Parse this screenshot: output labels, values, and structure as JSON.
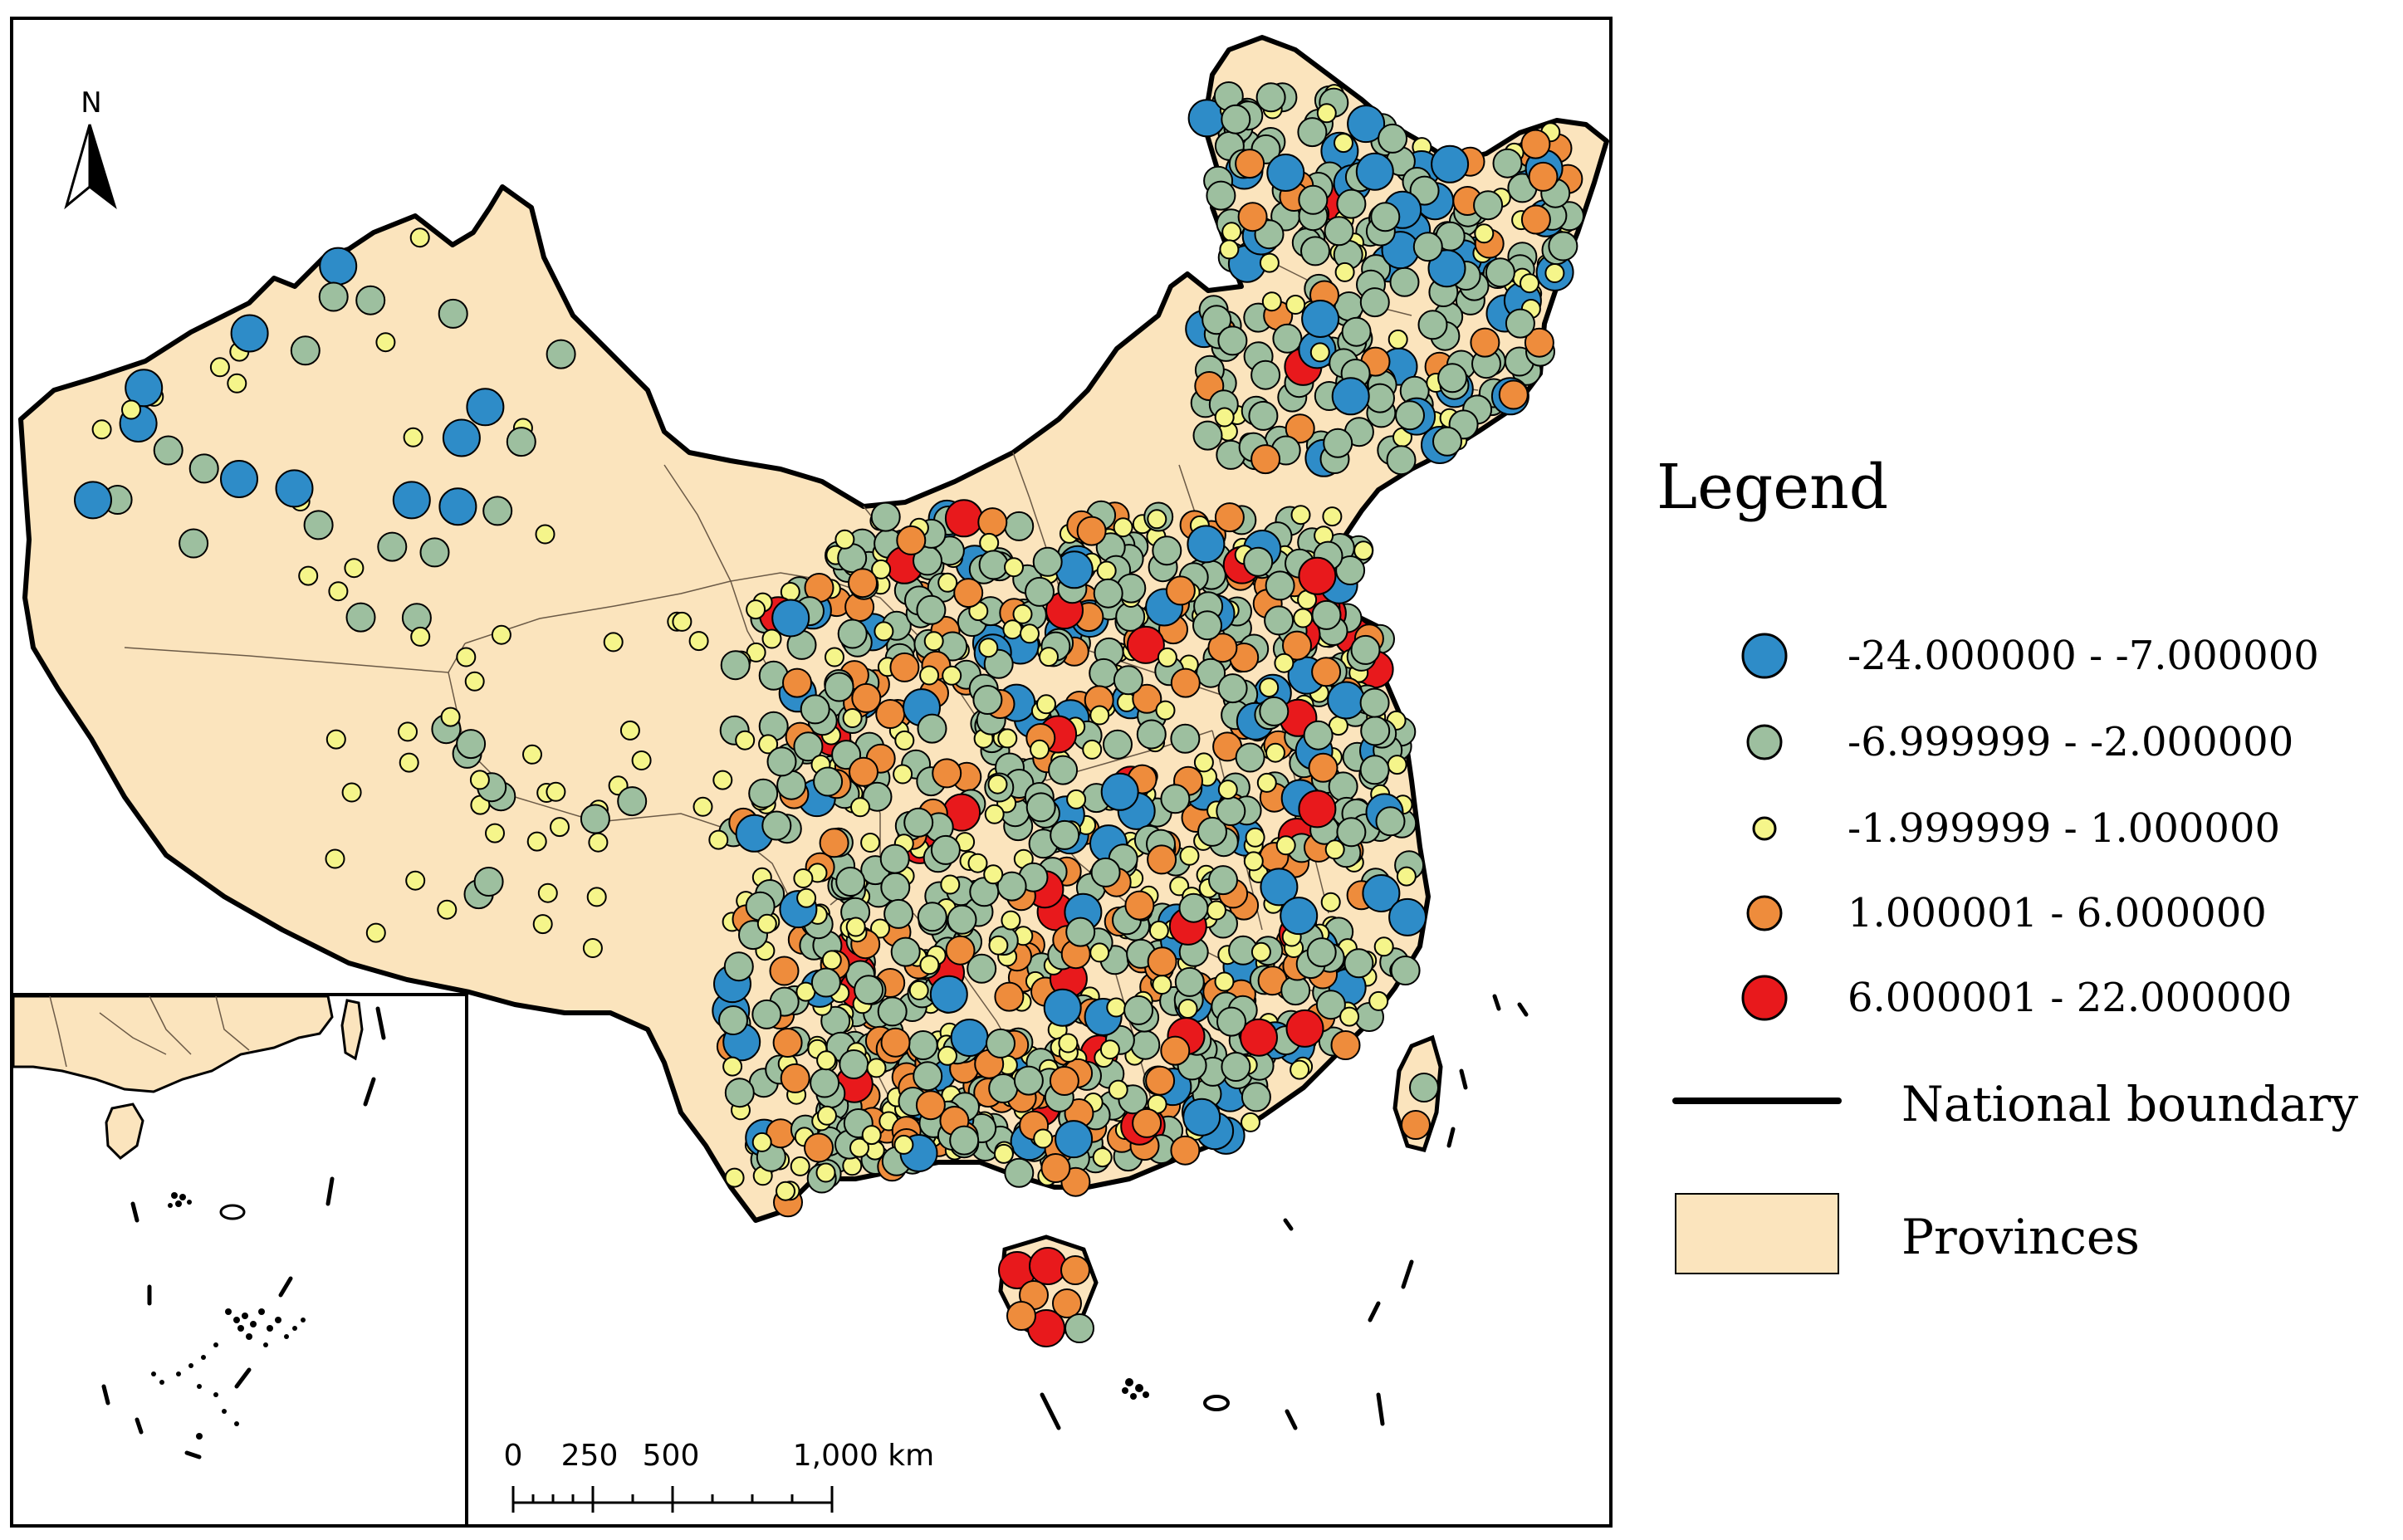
{
  "north_label": "N",
  "scale_bar": {
    "ticks": [
      "0",
      "250",
      "500",
      "1,000 km"
    ]
  },
  "legend": {
    "title": "Legend",
    "classes": [
      {
        "label": "-24.000000 - -7.000000",
        "color": "#2e8cc8",
        "size": "large"
      },
      {
        "label": "-6.999999 - -2.000000",
        "color": "#9dbf9f",
        "size": "medium"
      },
      {
        "label": "-1.999999 - 1.000000",
        "color": "#f5f58a",
        "size": "small"
      },
      {
        "label": "1.000001 - 6.000000",
        "color": "#ee8c3c",
        "size": "medium"
      },
      {
        "label": "6.000001 - 22.000000",
        "color": "#e8191c",
        "size": "large"
      }
    ],
    "boundary_label": "National boundary",
    "provinces_label": "Provinces",
    "province_fill": "#fbe4bd",
    "boundary_color": "#000000"
  }
}
